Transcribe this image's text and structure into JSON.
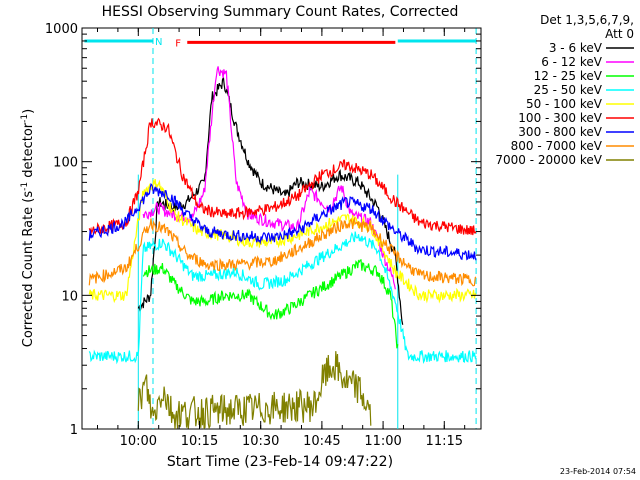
{
  "chart_data": {
    "type": "line",
    "title": "HESSI Observing Summary Count Rates, Corrected",
    "xlabel": "Start Time (23-Feb-14 09:47:22)",
    "ylabel": "Corrected Count Rate (s",
    "ylabel_sup": "-1",
    "ylabel_mid": " detector",
    "ylabel_end": ")",
    "y_scale": "log",
    "ylim": [
      1,
      1000
    ],
    "xlim_minutes": [
      9.77,
      11.4
    ],
    "x_ticks": [
      {
        "label": "10:00",
        "t": 10.0
      },
      {
        "label": "10:15",
        "t": 10.25
      },
      {
        "label": "10:30",
        "t": 10.5
      },
      {
        "label": "10:45",
        "t": 10.75
      },
      {
        "label": "11:00",
        "t": 11.0
      },
      {
        "label": "11:15",
        "t": 11.25
      }
    ],
    "y_ticks": [
      {
        "label": "1",
        "v": 1
      },
      {
        "label": "10",
        "v": 10
      },
      {
        "label": "100",
        "v": 100
      },
      {
        "label": "1000",
        "v": 1000
      }
    ],
    "legend": {
      "header1": "Det 1,3,5,6,7,9,",
      "header2": "Att 0",
      "placement": "top-right-outside"
    },
    "annotations": {
      "night_label": "N",
      "flare_label": "F",
      "timestamp": "23-Feb-2014 07:54"
    },
    "series": [
      {
        "name": "3 - 6 keV",
        "color": "#000000",
        "points": [
          [
            10.0,
            8
          ],
          [
            10.05,
            10
          ],
          [
            10.08,
            50
          ],
          [
            10.15,
            45
          ],
          [
            10.2,
            50
          ],
          [
            10.27,
            70
          ],
          [
            10.3,
            300
          ],
          [
            10.35,
            400
          ],
          [
            10.4,
            180
          ],
          [
            10.45,
            100
          ],
          [
            10.5,
            70
          ],
          [
            10.6,
            55
          ],
          [
            10.65,
            70
          ],
          [
            10.75,
            65
          ],
          [
            10.82,
            80
          ],
          [
            10.9,
            70
          ],
          [
            10.98,
            45
          ],
          [
            11.05,
            20
          ],
          [
            11.08,
            6
          ]
        ]
      },
      {
        "name": "6 - 12 keV",
        "color": "#ff00ff",
        "points": [
          [
            10.02,
            40
          ],
          [
            10.08,
            45
          ],
          [
            10.15,
            40
          ],
          [
            10.22,
            38
          ],
          [
            10.27,
            60
          ],
          [
            10.32,
            500
          ],
          [
            10.36,
            450
          ],
          [
            10.4,
            70
          ],
          [
            10.45,
            40
          ],
          [
            10.55,
            35
          ],
          [
            10.65,
            32
          ],
          [
            10.7,
            60
          ],
          [
            10.78,
            45
          ],
          [
            10.83,
            65
          ],
          [
            10.87,
            40
          ],
          [
            10.95,
            35
          ],
          [
            11.05,
            12
          ]
        ]
      },
      {
        "name": "12 - 25 keV",
        "color": "#00ff00",
        "points": [
          [
            10.02,
            15
          ],
          [
            10.1,
            16
          ],
          [
            10.15,
            12
          ],
          [
            10.22,
            9
          ],
          [
            10.28,
            9
          ],
          [
            10.35,
            10
          ],
          [
            10.45,
            10
          ],
          [
            10.55,
            7
          ],
          [
            10.62,
            8
          ],
          [
            10.7,
            10
          ],
          [
            10.8,
            13
          ],
          [
            10.9,
            17
          ],
          [
            10.98,
            15
          ],
          [
            11.03,
            10
          ],
          [
            11.06,
            4
          ]
        ]
      },
      {
        "name": "25 - 50 keV",
        "color": "#00ffff",
        "points": [
          [
            9.8,
            3.5
          ],
          [
            10.0,
            3.5
          ],
          [
            10.02,
            22
          ],
          [
            10.1,
            25
          ],
          [
            10.15,
            20
          ],
          [
            10.22,
            14
          ],
          [
            10.3,
            14
          ],
          [
            10.4,
            15
          ],
          [
            10.5,
            12
          ],
          [
            10.6,
            13
          ],
          [
            10.7,
            17
          ],
          [
            10.8,
            22
          ],
          [
            10.9,
            28
          ],
          [
            10.98,
            22
          ],
          [
            11.05,
            9
          ],
          [
            11.1,
            3.5
          ],
          [
            11.38,
            3.5
          ]
        ]
      },
      {
        "name": "50 - 100 keV",
        "color": "#ffff00",
        "points": [
          [
            9.8,
            10
          ],
          [
            9.95,
            10
          ],
          [
            10.02,
            60
          ],
          [
            10.08,
            70
          ],
          [
            10.15,
            40
          ],
          [
            10.25,
            30
          ],
          [
            10.35,
            28
          ],
          [
            10.45,
            25
          ],
          [
            10.55,
            25
          ],
          [
            10.65,
            28
          ],
          [
            10.75,
            33
          ],
          [
            10.85,
            38
          ],
          [
            10.95,
            33
          ],
          [
            11.05,
            15
          ],
          [
            11.15,
            10
          ],
          [
            11.38,
            10
          ]
        ]
      },
      {
        "name": "100 - 300 keV",
        "color": "#ff0000",
        "points": [
          [
            9.8,
            30
          ],
          [
            9.95,
            35
          ],
          [
            10.0,
            60
          ],
          [
            10.05,
            200
          ],
          [
            10.12,
            180
          ],
          [
            10.18,
            80
          ],
          [
            10.25,
            45
          ],
          [
            10.35,
            40
          ],
          [
            10.45,
            42
          ],
          [
            10.55,
            45
          ],
          [
            10.65,
            55
          ],
          [
            10.75,
            80
          ],
          [
            10.85,
            95
          ],
          [
            10.95,
            80
          ],
          [
            11.05,
            50
          ],
          [
            11.15,
            35
          ],
          [
            11.38,
            30
          ]
        ]
      },
      {
        "name": "300 - 800 keV",
        "color": "#0000ff",
        "points": [
          [
            9.8,
            28
          ],
          [
            9.95,
            35
          ],
          [
            10.05,
            62
          ],
          [
            10.12,
            58
          ],
          [
            10.2,
            40
          ],
          [
            10.28,
            30
          ],
          [
            10.4,
            28
          ],
          [
            10.55,
            27
          ],
          [
            10.65,
            30
          ],
          [
            10.75,
            40
          ],
          [
            10.85,
            50
          ],
          [
            10.95,
            45
          ],
          [
            11.05,
            30
          ],
          [
            11.15,
            22
          ],
          [
            11.38,
            20
          ]
        ]
      },
      {
        "name": "800 - 7000 keV",
        "color": "#ff8c00",
        "points": [
          [
            9.8,
            13
          ],
          [
            9.95,
            16
          ],
          [
            10.05,
            35
          ],
          [
            10.12,
            30
          ],
          [
            10.2,
            20
          ],
          [
            10.28,
            17
          ],
          [
            10.4,
            17
          ],
          [
            10.55,
            18
          ],
          [
            10.65,
            22
          ],
          [
            10.75,
            28
          ],
          [
            10.85,
            35
          ],
          [
            10.95,
            32
          ],
          [
            11.05,
            20
          ],
          [
            11.15,
            14
          ],
          [
            11.38,
            13
          ]
        ]
      },
      {
        "name": "7000 - 20000 keV",
        "color": "#808000",
        "points": [
          [
            10.0,
            1.5
          ],
          [
            10.03,
            2.2
          ],
          [
            10.06,
            1.2
          ],
          [
            10.1,
            2.0
          ],
          [
            10.14,
            1.3
          ],
          [
            10.72,
            1.5
          ],
          [
            10.76,
            2.5
          ],
          [
            10.8,
            3.0
          ],
          [
            10.85,
            2.2
          ],
          [
            10.9,
            2.0
          ],
          [
            10.95,
            1.3
          ]
        ]
      }
    ],
    "flare_bar": {
      "start": 10.2,
      "end": 11.05,
      "level": 780
    },
    "night_bars": [
      {
        "start": 9.78,
        "end": 10.06,
        "level": 800
      },
      {
        "start": 11.06,
        "end": 11.38,
        "level": 800
      }
    ],
    "night_dashed_lines": [
      10.06,
      11.38
    ],
    "night_solid_lines": [
      10.0,
      11.06
    ]
  }
}
